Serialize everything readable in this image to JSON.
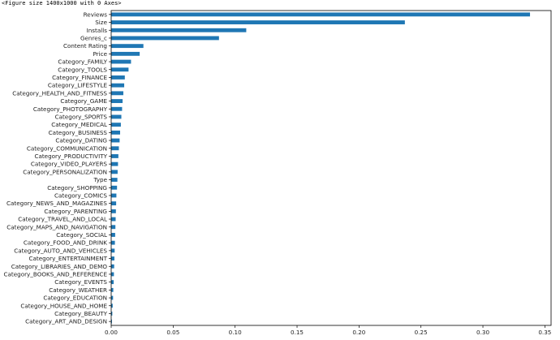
{
  "figure_caption": "<Figure size 1400x1000 with 0 Axes>",
  "colors": {
    "bar": "#1f77b4",
    "axis": "#000000"
  },
  "chart_data": {
    "type": "bar",
    "orientation": "horizontal",
    "title": "",
    "xlabel": "",
    "ylabel": "",
    "xlim": [
      0,
      0.355
    ],
    "x_ticks": [
      "0.00",
      "0.05",
      "0.10",
      "0.15",
      "0.20",
      "0.25",
      "0.30",
      "0.35"
    ],
    "x_tick_values": [
      0,
      0.05,
      0.1,
      0.15,
      0.2,
      0.25,
      0.3,
      0.35
    ],
    "grid": false,
    "legend": "none",
    "categories": [
      "Reviews",
      "Size",
      "Installs",
      "Genres_c",
      "Content Rating",
      "Price",
      "Category_FAMILY",
      "Category_TOOLS",
      "Category_FINANCE",
      "Category_LIFESTYLE",
      "Category_HEALTH_AND_FITNESS",
      "Category_GAME",
      "Category_PHOTOGRAPHY",
      "Category_SPORTS",
      "Category_MEDICAL",
      "Category_BUSINESS",
      "Category_DATING",
      "Category_COMMUNICATION",
      "Category_PRODUCTIVITY",
      "Category_VIDEO_PLAYERS",
      "Category_PERSONALIZATION",
      "Type",
      "Category_SHOPPING",
      "Category_COMICS",
      "Category_NEWS_AND_MAGAZINES",
      "Category_PARENTING",
      "Category_TRAVEL_AND_LOCAL",
      "Category_MAPS_AND_NAVIGATION",
      "Category_SOCIAL",
      "Category_FOOD_AND_DRINK",
      "Category_AUTO_AND_VEHICLES",
      "Category_ENTERTAINMENT",
      "Category_LIBRARIES_AND_DEMO",
      "Category_BOOKS_AND_REFERENCE",
      "Category_EVENTS",
      "Category_WEATHER",
      "Category_EDUCATION",
      "Category_HOUSE_AND_HOME",
      "Category_BEAUTY",
      "Category_ART_AND_DESIGN"
    ],
    "values": [
      0.338,
      0.237,
      0.109,
      0.087,
      0.026,
      0.023,
      0.016,
      0.014,
      0.011,
      0.0105,
      0.0098,
      0.0092,
      0.0088,
      0.0082,
      0.0078,
      0.0072,
      0.0068,
      0.0062,
      0.0058,
      0.0055,
      0.0052,
      0.005,
      0.0047,
      0.0042,
      0.004,
      0.0038,
      0.0036,
      0.0034,
      0.0032,
      0.003,
      0.0028,
      0.0026,
      0.0024,
      0.0022,
      0.002,
      0.0017,
      0.0015,
      0.0012,
      0.0009,
      0.0006
    ]
  }
}
